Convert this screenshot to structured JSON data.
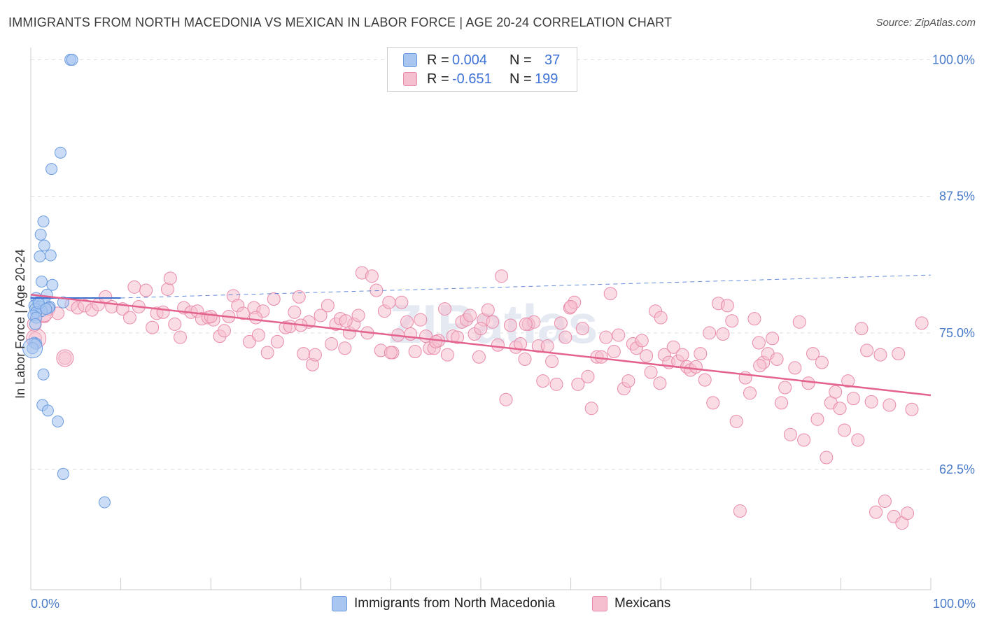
{
  "title": "IMMIGRANTS FROM NORTH MACEDONIA VS MEXICAN IN LABOR FORCE | AGE 20-24 CORRELATION CHART",
  "source": "Source: ZipAtlas.com",
  "watermark": "ZIPatlas",
  "colors": {
    "blue_fill": "#a9c6f0",
    "blue_stroke": "#6b9ce0",
    "blue_line": "#3d6fd1",
    "pink_fill": "#f6bfd0",
    "pink_stroke": "#e98aa9",
    "pink_line": "#e4628e",
    "axis_text": "#4a7cc9",
    "grid": "#dddddd"
  },
  "legend": {
    "rows": [
      {
        "r_label": "R =",
        "r_value": "0.004",
        "n_label": "N =",
        "n_value": "37"
      },
      {
        "r_label": "R =",
        "r_value": "-0.651",
        "n_label": "N =",
        "n_value": "199"
      }
    ]
  },
  "chart_data": {
    "type": "scatter",
    "title": "IMMIGRANTS FROM NORTH MACEDONIA VS MEXICAN IN LABOR FORCE | AGE 20-24 CORRELATION CHART",
    "xlabel": "",
    "ylabel": "In Labor Force | Age 20-24",
    "xlim": [
      0,
      100
    ],
    "ylim": [
      51.5,
      101.5
    ],
    "x_tick_labels": [
      "0.0%",
      "100.0%"
    ],
    "y_ticks": [
      62.5,
      75.0,
      87.5,
      100.0
    ],
    "y_tick_labels": [
      "62.5%",
      "75.0%",
      "87.5%",
      "100.0%"
    ],
    "grid": true,
    "legend_position": "bottom",
    "series": [
      {
        "name": "Immigrants from North Macedonia",
        "trend": {
          "x0": 0,
          "y0": 78.2,
          "x1": 10,
          "y1": 78.2,
          "dash_x1": 100,
          "dash_y1": 80.3
        },
        "points": [
          [
            4.4,
            100.0
          ],
          [
            4.6,
            100.0
          ],
          [
            3.3,
            91.5
          ],
          [
            2.3,
            90.0
          ],
          [
            1.4,
            85.2
          ],
          [
            1.1,
            84.0
          ],
          [
            1.5,
            83.0
          ],
          [
            2.2,
            82.1
          ],
          [
            1.0,
            82.0
          ],
          [
            1.2,
            79.7
          ],
          [
            2.4,
            79.4
          ],
          [
            1.8,
            78.5
          ],
          [
            0.6,
            78.2
          ],
          [
            0.8,
            77.8
          ],
          [
            1.5,
            77.9
          ],
          [
            3.6,
            77.8
          ],
          [
            0.4,
            77.5
          ],
          [
            1.0,
            77.4
          ],
          [
            2.1,
            77.4
          ],
          [
            2.0,
            77.3
          ],
          [
            0.5,
            77.2
          ],
          [
            1.2,
            77.0
          ],
          [
            0.6,
            76.9
          ],
          [
            0.3,
            76.6
          ],
          [
            0.6,
            76.4
          ],
          [
            0.5,
            75.8
          ],
          [
            0.4,
            74.1
          ],
          [
            0.6,
            74.0
          ],
          [
            0.2,
            73.6
          ],
          [
            1.4,
            71.2
          ],
          [
            1.3,
            68.4
          ],
          [
            1.9,
            67.9
          ],
          [
            3.0,
            66.9
          ],
          [
            3.6,
            62.1
          ],
          [
            8.2,
            59.5
          ],
          [
            0.9,
            77.7
          ],
          [
            1.7,
            77.2
          ]
        ]
      },
      {
        "name": "Mexicans",
        "trend": {
          "x0": 0,
          "y0": 78.5,
          "x1": 100,
          "y1": 69.3
        },
        "points": [
          [
            0.5,
            74.5
          ],
          [
            1.5,
            76.5
          ],
          [
            2.0,
            77.2
          ],
          [
            3.0,
            76.8
          ],
          [
            3.8,
            72.7
          ],
          [
            4.5,
            77.6
          ],
          [
            5.2,
            77.3
          ],
          [
            6.0,
            77.5
          ],
          [
            6.8,
            77.1
          ],
          [
            7.5,
            77.6
          ],
          [
            8.3,
            78.3
          ],
          [
            9.0,
            77.4
          ],
          [
            10.2,
            77.2
          ],
          [
            11.0,
            76.4
          ],
          [
            11.5,
            79.2
          ],
          [
            12.0,
            77.4
          ],
          [
            12.8,
            78.9
          ],
          [
            13.5,
            75.5
          ],
          [
            14.0,
            76.8
          ],
          [
            14.7,
            76.9
          ],
          [
            15.2,
            79.0
          ],
          [
            15.5,
            80.0
          ],
          [
            16.0,
            75.8
          ],
          [
            16.6,
            74.6
          ],
          [
            17.0,
            77.3
          ],
          [
            17.8,
            76.9
          ],
          [
            18.5,
            77.0
          ],
          [
            19.0,
            76.3
          ],
          [
            19.7,
            76.4
          ],
          [
            20.3,
            76.2
          ],
          [
            21.0,
            74.7
          ],
          [
            21.5,
            75.2
          ],
          [
            22.0,
            76.5
          ],
          [
            22.5,
            78.4
          ],
          [
            23.0,
            77.5
          ],
          [
            23.6,
            76.8
          ],
          [
            24.3,
            74.2
          ],
          [
            24.8,
            77.3
          ],
          [
            25.3,
            74.8
          ],
          [
            25.8,
            77.0
          ],
          [
            26.3,
            73.2
          ],
          [
            27.0,
            78.1
          ],
          [
            27.4,
            74.2
          ],
          [
            28.3,
            75.5
          ],
          [
            28.8,
            75.6
          ],
          [
            29.3,
            76.9
          ],
          [
            29.8,
            78.3
          ],
          [
            30.3,
            73.1
          ],
          [
            30.9,
            76.0
          ],
          [
            31.3,
            72.1
          ],
          [
            31.6,
            73.0
          ],
          [
            32.2,
            76.6
          ],
          [
            33.0,
            77.5
          ],
          [
            33.4,
            74.0
          ],
          [
            33.9,
            75.8
          ],
          [
            34.4,
            76.3
          ],
          [
            34.9,
            73.6
          ],
          [
            35.4,
            75.0
          ],
          [
            35.9,
            75.8
          ],
          [
            36.4,
            76.6
          ],
          [
            36.8,
            80.5
          ],
          [
            37.4,
            75.0
          ],
          [
            37.9,
            80.2
          ],
          [
            38.4,
            78.9
          ],
          [
            38.9,
            73.4
          ],
          [
            39.3,
            77.0
          ],
          [
            39.8,
            77.8
          ],
          [
            40.2,
            73.2
          ],
          [
            40.8,
            74.8
          ],
          [
            41.2,
            77.8
          ],
          [
            41.8,
            76.0
          ],
          [
            42.2,
            74.9
          ],
          [
            42.7,
            73.3
          ],
          [
            43.3,
            76.2
          ],
          [
            43.9,
            74.7
          ],
          [
            44.3,
            73.6
          ],
          [
            44.8,
            73.6
          ],
          [
            45.3,
            74.3
          ],
          [
            46.0,
            77.2
          ],
          [
            46.3,
            73.0
          ],
          [
            46.9,
            74.7
          ],
          [
            47.4,
            74.6
          ],
          [
            47.9,
            76.0
          ],
          [
            48.4,
            76.2
          ],
          [
            48.8,
            76.6
          ],
          [
            49.3,
            74.9
          ],
          [
            49.8,
            72.8
          ],
          [
            50.3,
            76.2
          ],
          [
            50.8,
            77.1
          ],
          [
            51.3,
            76.0
          ],
          [
            51.9,
            73.9
          ],
          [
            52.3,
            80.2
          ],
          [
            52.8,
            68.9
          ],
          [
            53.3,
            75.7
          ],
          [
            53.9,
            73.7
          ],
          [
            54.4,
            74.0
          ],
          [
            54.9,
            72.6
          ],
          [
            55.3,
            75.8
          ],
          [
            55.9,
            76.0
          ],
          [
            56.4,
            73.8
          ],
          [
            56.9,
            70.6
          ],
          [
            57.4,
            73.8
          ],
          [
            57.9,
            72.4
          ],
          [
            58.4,
            70.3
          ],
          [
            58.9,
            75.9
          ],
          [
            59.4,
            74.6
          ],
          [
            59.9,
            77.3
          ],
          [
            60.4,
            77.8
          ],
          [
            60.8,
            70.3
          ],
          [
            61.3,
            75.4
          ],
          [
            61.9,
            71.0
          ],
          [
            62.3,
            68.1
          ],
          [
            62.9,
            72.8
          ],
          [
            63.4,
            72.8
          ],
          [
            63.9,
            74.6
          ],
          [
            64.4,
            78.6
          ],
          [
            64.8,
            73.3
          ],
          [
            65.3,
            74.8
          ],
          [
            65.9,
            69.9
          ],
          [
            66.4,
            70.6
          ],
          [
            66.9,
            74.0
          ],
          [
            67.3,
            73.6
          ],
          [
            67.9,
            74.3
          ],
          [
            68.4,
            72.9
          ],
          [
            68.9,
            71.4
          ],
          [
            69.4,
            77.0
          ],
          [
            69.9,
            70.4
          ],
          [
            70.4,
            73.0
          ],
          [
            70.9,
            72.3
          ],
          [
            71.4,
            73.7
          ],
          [
            71.9,
            72.4
          ],
          [
            72.4,
            73.0
          ],
          [
            72.9,
            71.9
          ],
          [
            73.3,
            71.6
          ],
          [
            73.9,
            71.9
          ],
          [
            74.4,
            73.1
          ],
          [
            74.9,
            70.7
          ],
          [
            75.4,
            75.0
          ],
          [
            75.8,
            68.6
          ],
          [
            76.4,
            77.7
          ],
          [
            76.9,
            74.9
          ],
          [
            77.4,
            77.5
          ],
          [
            77.9,
            76.1
          ],
          [
            78.4,
            66.9
          ],
          [
            78.8,
            58.7
          ],
          [
            79.4,
            70.9
          ],
          [
            79.9,
            69.5
          ],
          [
            80.4,
            76.3
          ],
          [
            80.9,
            74.1
          ],
          [
            81.4,
            72.3
          ],
          [
            81.9,
            73.1
          ],
          [
            82.4,
            74.5
          ],
          [
            82.9,
            72.6
          ],
          [
            83.4,
            68.6
          ],
          [
            83.8,
            70.0
          ],
          [
            84.4,
            65.7
          ],
          [
            84.9,
            71.8
          ],
          [
            85.4,
            76.0
          ],
          [
            85.9,
            65.2
          ],
          [
            86.4,
            70.4
          ],
          [
            86.9,
            73.1
          ],
          [
            87.4,
            67.1
          ],
          [
            87.9,
            72.3
          ],
          [
            88.4,
            63.6
          ],
          [
            88.9,
            68.6
          ],
          [
            89.4,
            69.6
          ],
          [
            89.9,
            68.1
          ],
          [
            90.4,
            66.1
          ],
          [
            90.8,
            70.6
          ],
          [
            91.4,
            69.0
          ],
          [
            91.9,
            65.2
          ],
          [
            92.3,
            75.4
          ],
          [
            92.9,
            73.4
          ],
          [
            93.4,
            68.7
          ],
          [
            93.9,
            58.6
          ],
          [
            94.4,
            73.0
          ],
          [
            94.9,
            59.6
          ],
          [
            95.4,
            68.4
          ],
          [
            95.9,
            58.2
          ],
          [
            96.4,
            73.1
          ],
          [
            96.8,
            57.6
          ],
          [
            97.4,
            58.5
          ],
          [
            97.9,
            68.0
          ],
          [
            99.0,
            75.9
          ],
          [
            81.0,
            72.0
          ],
          [
            70.0,
            76.4
          ],
          [
            60.0,
            77.4
          ],
          [
            50.0,
            75.4
          ],
          [
            40.0,
            73.2
          ],
          [
            30.0,
            75.7
          ],
          [
            20.0,
            76.5
          ],
          [
            55.0,
            75.8
          ],
          [
            45.0,
            74.2
          ],
          [
            35.0,
            76.1
          ],
          [
            25.0,
            76.4
          ]
        ]
      }
    ]
  },
  "bottom_legend": {
    "series_a": "Immigrants from North Macedonia",
    "series_b": "Mexicans"
  }
}
